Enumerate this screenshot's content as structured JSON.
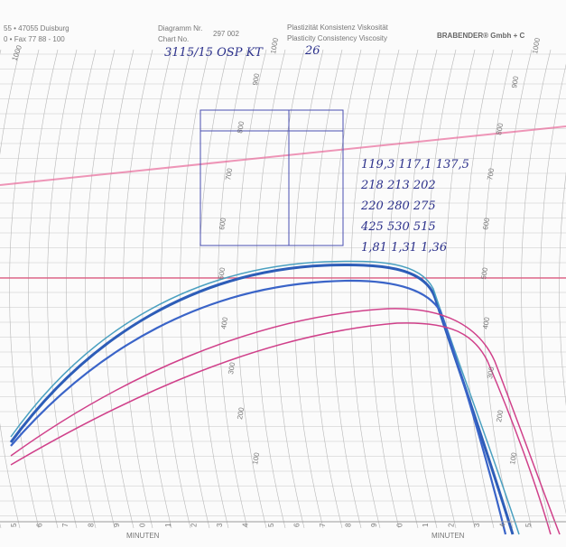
{
  "header": {
    "address_line1": "55 • 47055 Duisburg",
    "address_line2": "0 • Fax 77 88 - 100",
    "chart_label_de": "Diagramm Nr.",
    "chart_label_en": "Chart No.",
    "chart_number": "297 002",
    "quantity_de": "Plastizität Konsistenz Viskosität",
    "quantity_en": "Plasticity Consistency Viscosity",
    "company": "BRABENDER® Gmbh + C"
  },
  "handwriting": {
    "sample": "3115/15 OSP KT",
    "number": "26",
    "rows": [
      "119,3 117,1 137,5",
      "218 213 202",
      "220 280 275",
      "425 530 515",
      "1,81 1,31 1,36"
    ]
  },
  "scale": {
    "labels": [
      "1000",
      "900",
      "800",
      "700",
      "600",
      "500",
      "400",
      "300",
      "200",
      "100"
    ]
  },
  "footer": {
    "unit_left": "MINUTEN",
    "unit_right": "MINUTEN",
    "minutes": [
      "5",
      "6",
      "7",
      "8",
      "9",
      "0",
      "1",
      "2",
      "3",
      "4",
      "5",
      "6",
      "7",
      "8",
      "9",
      "0",
      "1",
      "2",
      "3",
      "4",
      "5"
    ]
  }
}
